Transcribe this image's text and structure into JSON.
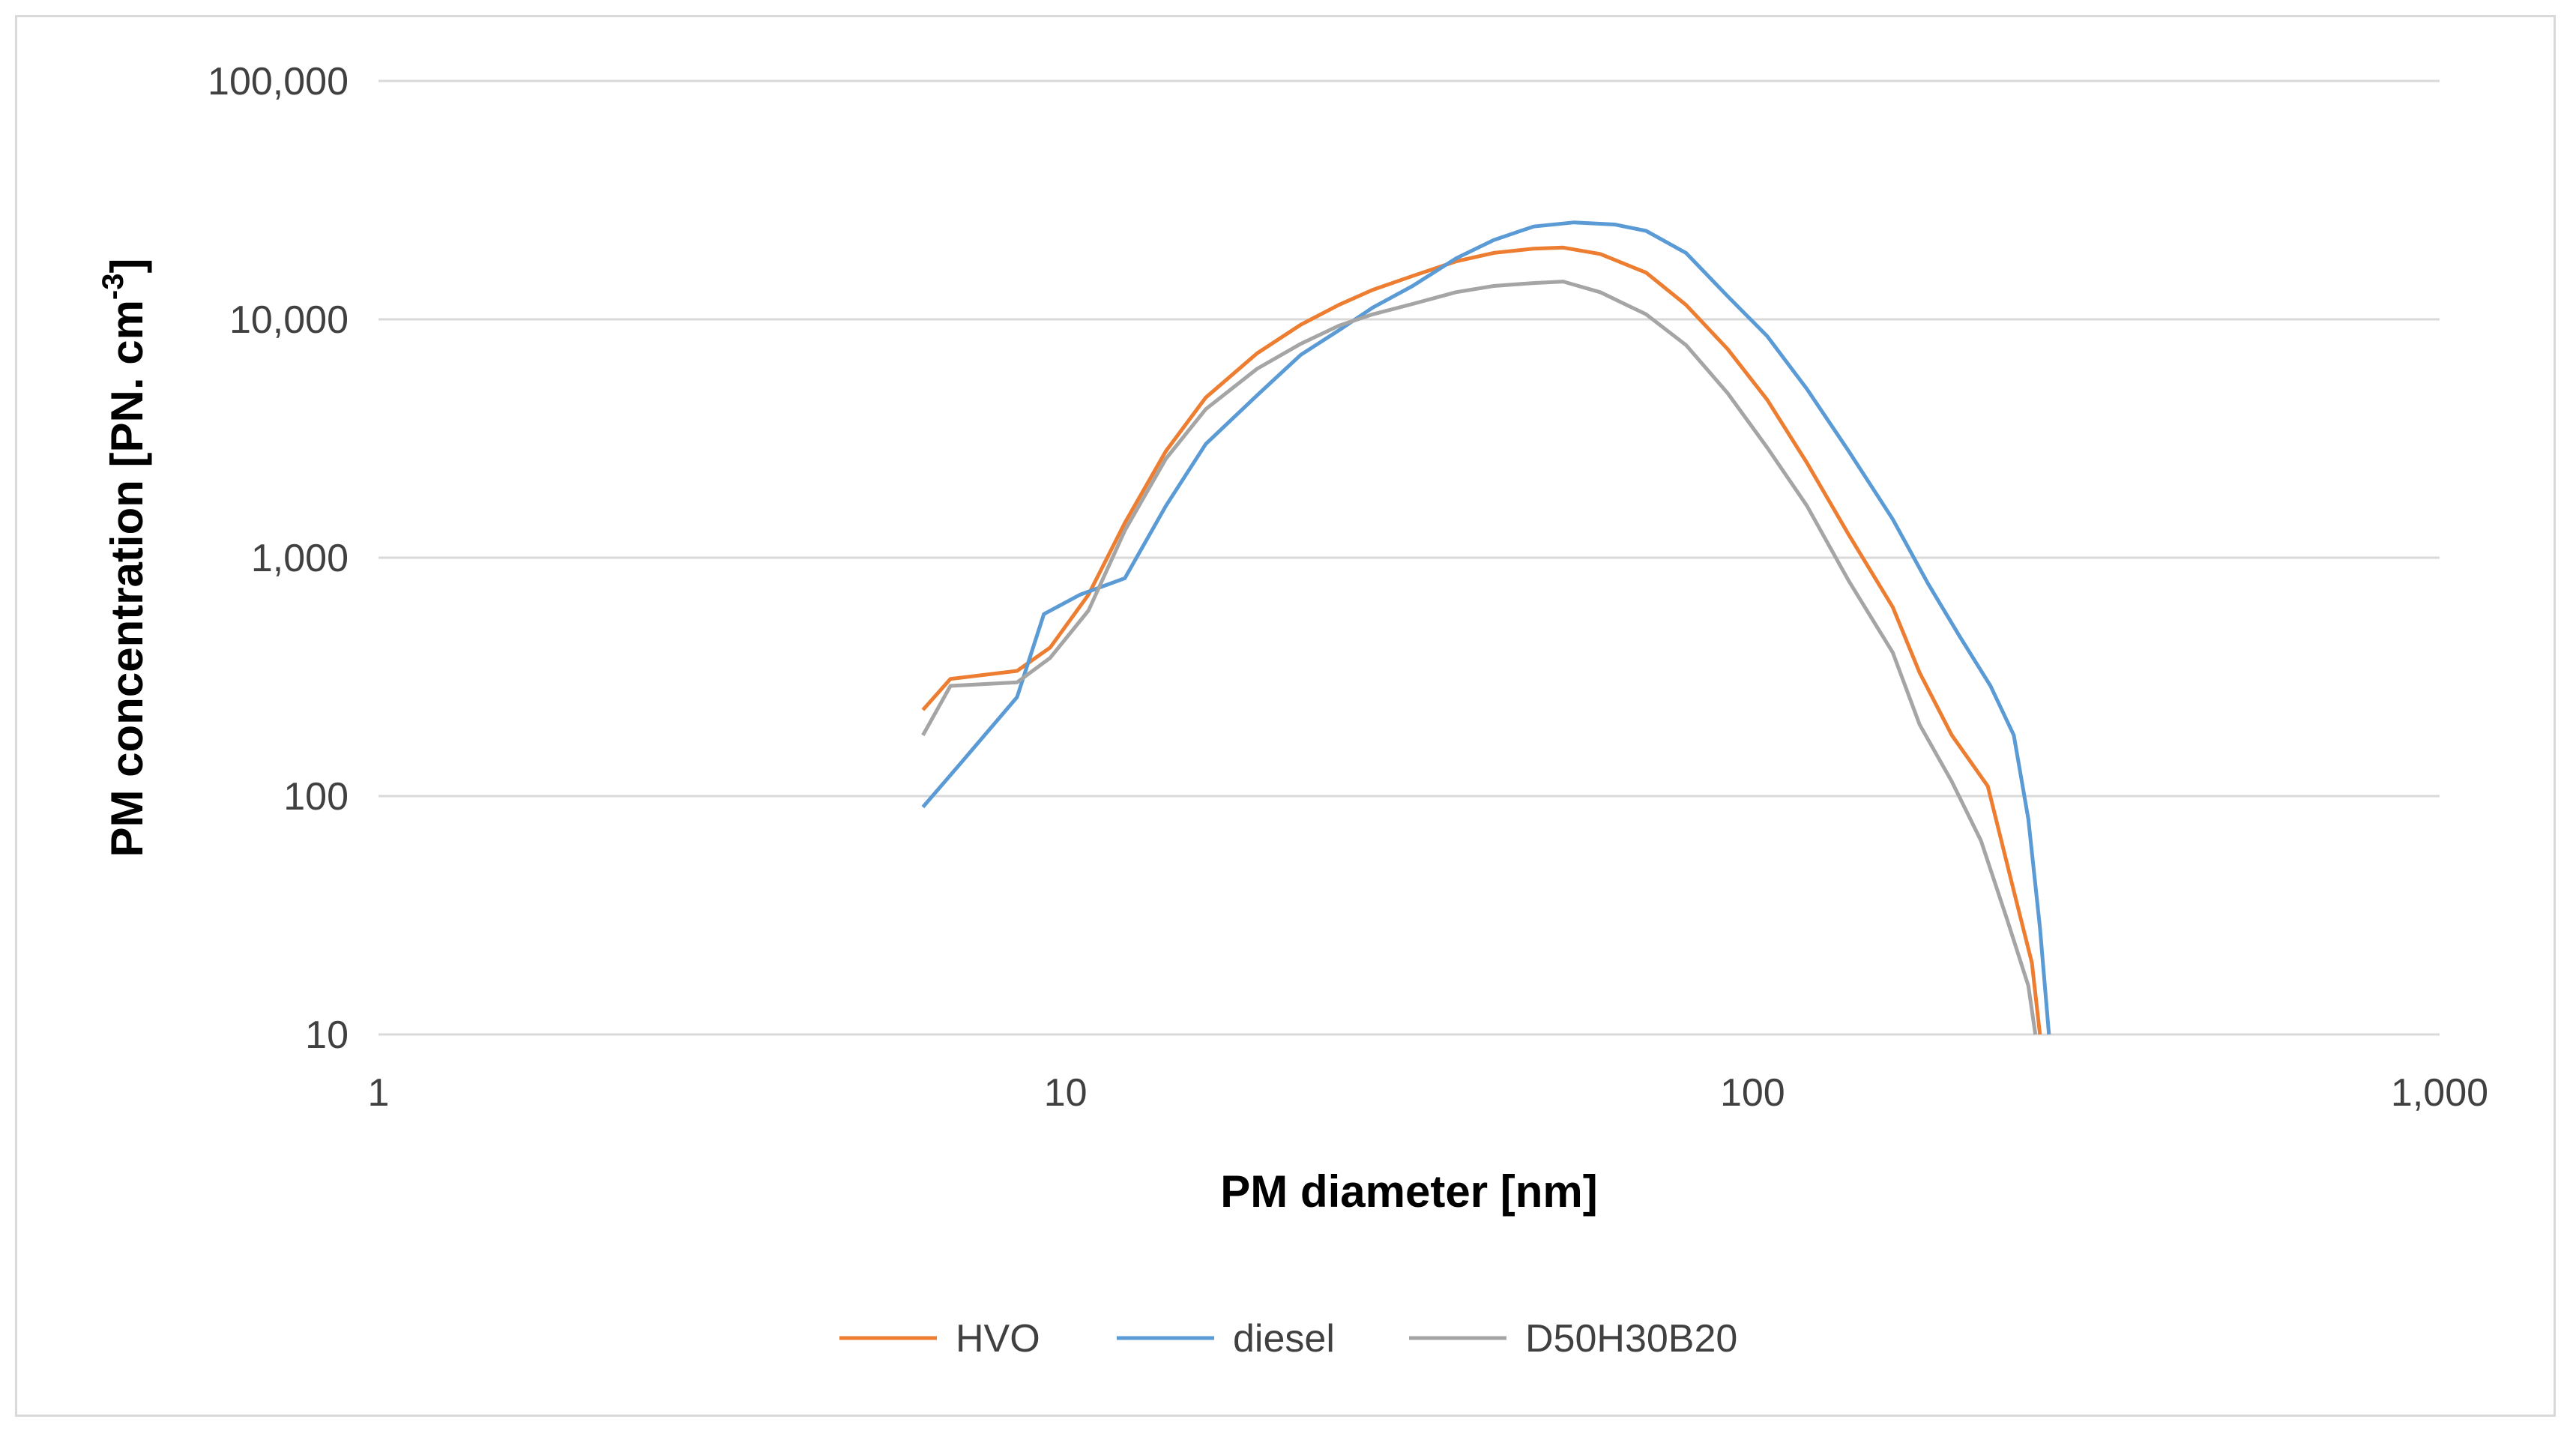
{
  "chart_data": {
    "type": "line",
    "xlabel": "PM diameter [nm]",
    "ylabel_main": "PM concentration  [PN. cm",
    "ylabel_sup": "-3",
    "ylabel_end": "]",
    "x_scale": "log",
    "y_scale": "log",
    "xlim": [
      1,
      1000
    ],
    "ylim": [
      10,
      100000
    ],
    "x_ticks": [
      1,
      10,
      100,
      1000
    ],
    "x_tick_labels": [
      "1",
      "10",
      "100",
      "1,000"
    ],
    "y_ticks": [
      10,
      100,
      1000,
      10000,
      100000
    ],
    "y_tick_labels": [
      "10",
      "100",
      "1,000",
      "10,000",
      "100,000"
    ],
    "grid": "horizontal",
    "legend_position": "bottom",
    "series": [
      {
        "name": "HVO",
        "color": "#ed7d31",
        "points": [
          [
            6.2,
            230
          ],
          [
            6.8,
            310
          ],
          [
            8.5,
            335
          ],
          [
            9.5,
            420
          ],
          [
            10.8,
            700
          ],
          [
            12.2,
            1400
          ],
          [
            14,
            2800
          ],
          [
            16,
            4700
          ],
          [
            19,
            7200
          ],
          [
            22,
            9500
          ],
          [
            25,
            11500
          ],
          [
            28,
            13300
          ],
          [
            32,
            15200
          ],
          [
            37,
            17500
          ],
          [
            42,
            19000
          ],
          [
            48,
            19800
          ],
          [
            53,
            20000
          ],
          [
            60,
            18800
          ],
          [
            70,
            15700
          ],
          [
            80,
            11500
          ],
          [
            92,
            7500
          ],
          [
            105,
            4600
          ],
          [
            120,
            2500
          ],
          [
            138,
            1250
          ],
          [
            160,
            620
          ],
          [
            175,
            330
          ],
          [
            195,
            180
          ],
          [
            220,
            110
          ],
          [
            240,
            40
          ],
          [
            255,
            20
          ],
          [
            262,
            10
          ]
        ]
      },
      {
        "name": "diesel",
        "color": "#5b9bd5",
        "points": [
          [
            6.2,
            90
          ],
          [
            7,
            135
          ],
          [
            8.5,
            260
          ],
          [
            9.3,
            580
          ],
          [
            10.5,
            700
          ],
          [
            12.2,
            820
          ],
          [
            14,
            1650
          ],
          [
            16,
            3000
          ],
          [
            19,
            4800
          ],
          [
            22,
            7100
          ],
          [
            25,
            9000
          ],
          [
            28,
            11200
          ],
          [
            32,
            13800
          ],
          [
            37,
            18000
          ],
          [
            42,
            21500
          ],
          [
            48,
            24500
          ],
          [
            55,
            25500
          ],
          [
            63,
            25000
          ],
          [
            70,
            23500
          ],
          [
            80,
            19000
          ],
          [
            92,
            12500
          ],
          [
            105,
            8500
          ],
          [
            120,
            5100
          ],
          [
            138,
            2800
          ],
          [
            160,
            1450
          ],
          [
            180,
            780
          ],
          [
            200,
            470
          ],
          [
            222,
            290
          ],
          [
            240,
            180
          ],
          [
            252,
            80
          ],
          [
            262,
            28
          ],
          [
            270,
            10
          ]
        ]
      },
      {
        "name": "D50H30B20",
        "color": "#a5a5a5",
        "points": [
          [
            6.2,
            180
          ],
          [
            6.8,
            290
          ],
          [
            8.5,
            300
          ],
          [
            9.5,
            380
          ],
          [
            10.8,
            600
          ],
          [
            12.2,
            1300
          ],
          [
            14,
            2600
          ],
          [
            16,
            4200
          ],
          [
            19,
            6200
          ],
          [
            22,
            7900
          ],
          [
            25,
            9400
          ],
          [
            28,
            10500
          ],
          [
            32,
            11600
          ],
          [
            37,
            13000
          ],
          [
            42,
            13800
          ],
          [
            48,
            14200
          ],
          [
            53,
            14400
          ],
          [
            60,
            13000
          ],
          [
            70,
            10500
          ],
          [
            80,
            7800
          ],
          [
            92,
            4900
          ],
          [
            105,
            2900
          ],
          [
            120,
            1650
          ],
          [
            138,
            800
          ],
          [
            160,
            400
          ],
          [
            175,
            200
          ],
          [
            195,
            115
          ],
          [
            215,
            65
          ],
          [
            235,
            30
          ],
          [
            252,
            16
          ],
          [
            258,
            10
          ]
        ]
      }
    ]
  }
}
